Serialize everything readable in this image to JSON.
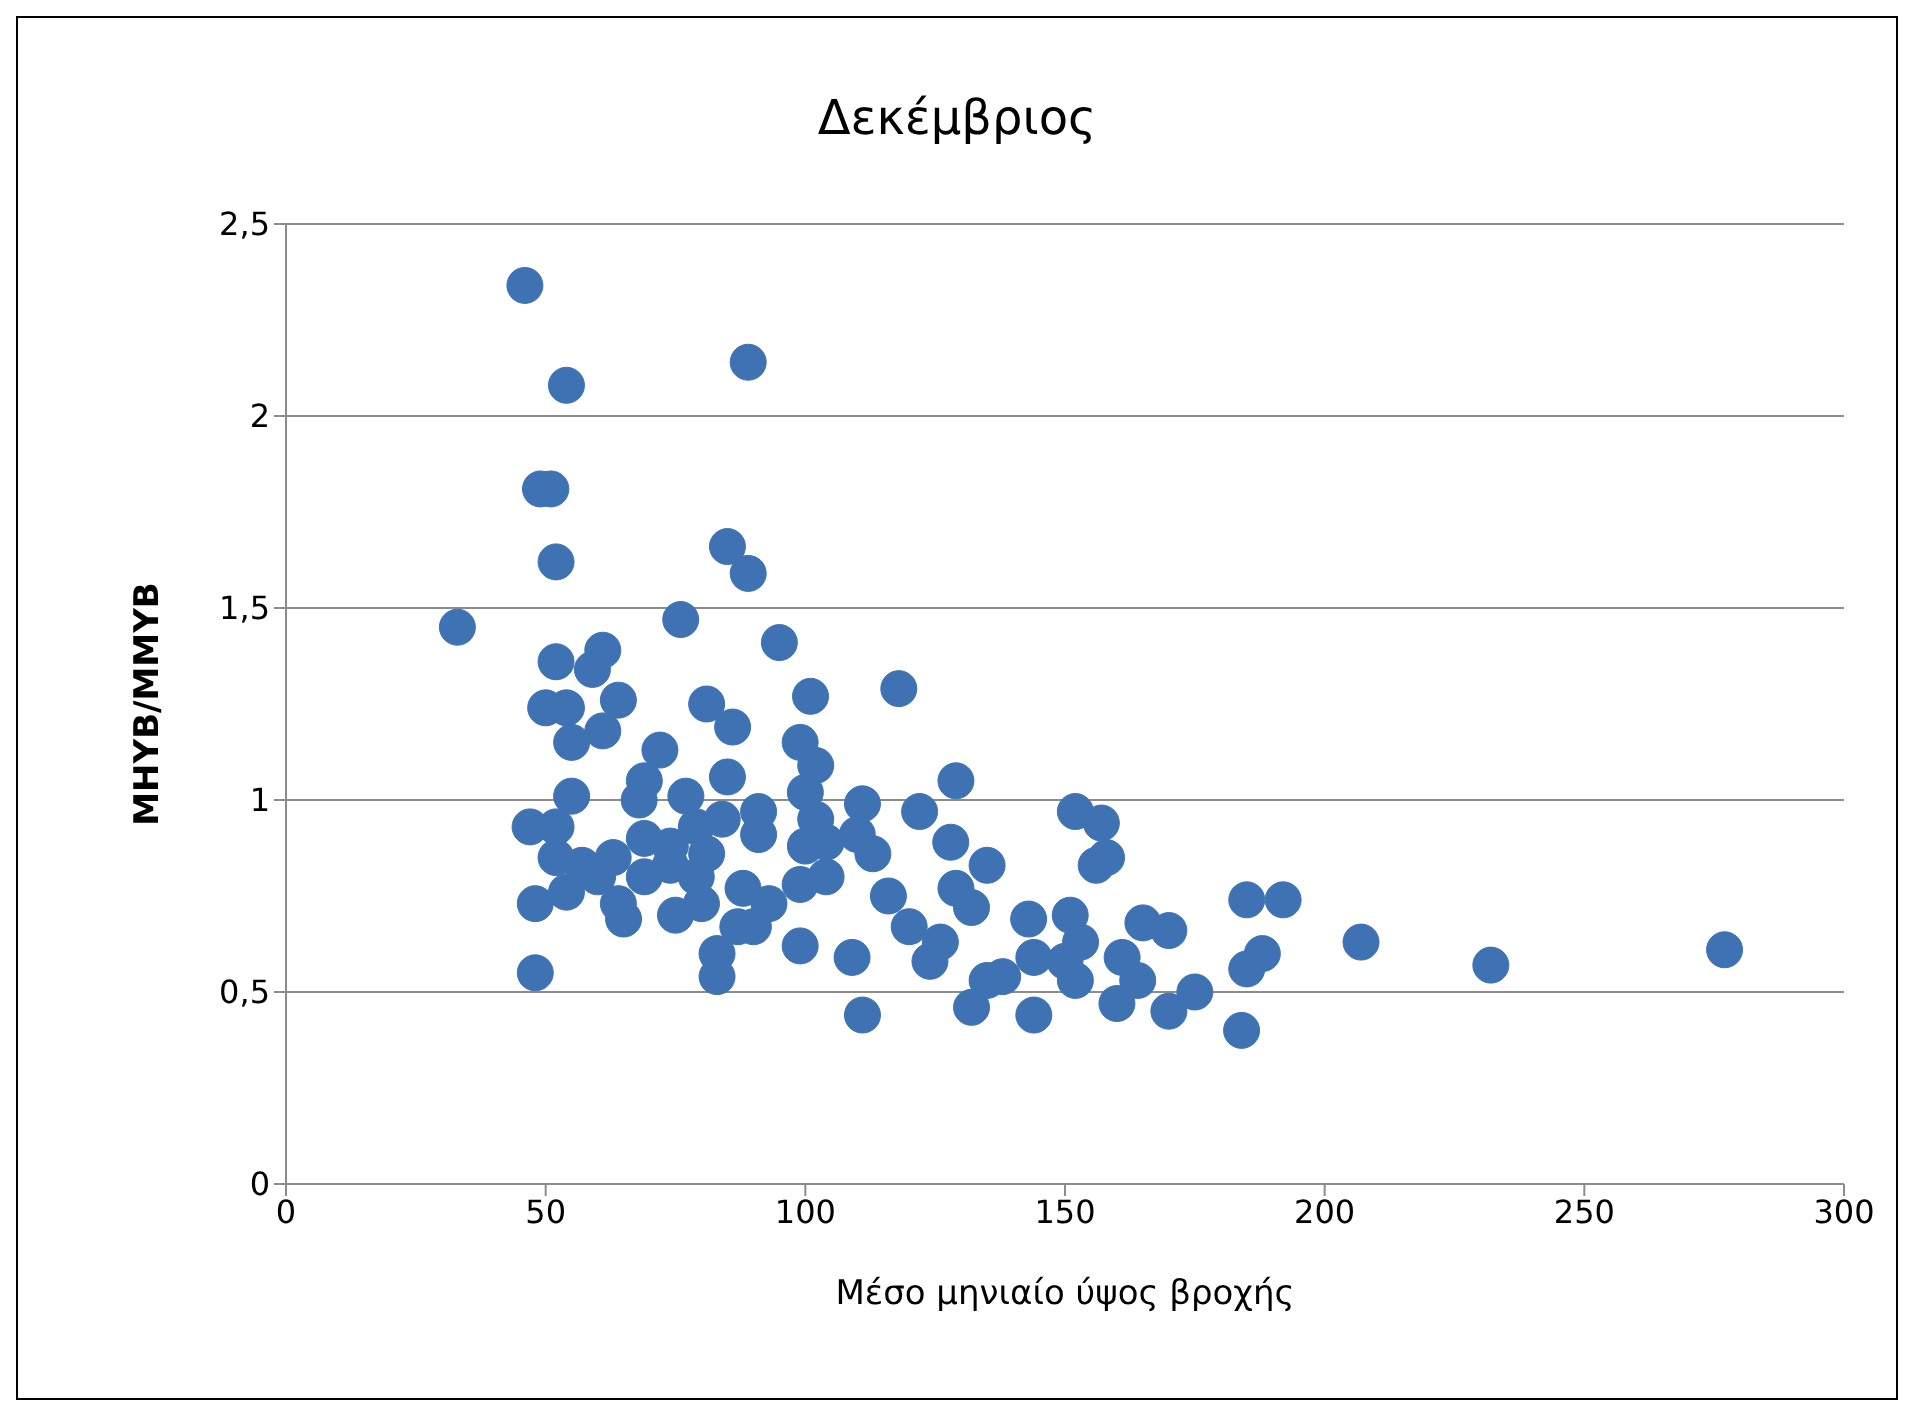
{
  "chart_data": {
    "type": "scatter",
    "title": "Δεκέμβριος",
    "xlabel": "Μέσο μηνιαίο ύψος βροχής",
    "ylabel": "ΜΗΥΒ/ΜΜΥΒ",
    "x": [
      46,
      54,
      89,
      49,
      51,
      52,
      85,
      89,
      33,
      76,
      95,
      52,
      61,
      59,
      50,
      54,
      64,
      55,
      61,
      81,
      86,
      101,
      99,
      102,
      72,
      85,
      100,
      55,
      69,
      68,
      77,
      47,
      52,
      69,
      84,
      91,
      91,
      102,
      104,
      100,
      52,
      57,
      63,
      60,
      69,
      74,
      74,
      81,
      79,
      79,
      99,
      104,
      48,
      54,
      64,
      65,
      75,
      80,
      88,
      93,
      90,
      87,
      99,
      83,
      83,
      48,
      118,
      129,
      111,
      122,
      152,
      157,
      158,
      156,
      128,
      113,
      110,
      135,
      129,
      132,
      116,
      120,
      126,
      124,
      143,
      151,
      153,
      144,
      150,
      152,
      165,
      170,
      161,
      164,
      160,
      170,
      175,
      185,
      192,
      188,
      185,
      184,
      138,
      135,
      132,
      144,
      111,
      109,
      207,
      232,
      277
    ],
    "series": [
      {
        "color": "#3f72b3",
        "values": [
          2.34,
          2.08,
          2.14,
          1.81,
          1.81,
          1.62,
          1.66,
          1.59,
          1.45,
          1.47,
          1.41,
          1.36,
          1.39,
          1.34,
          1.24,
          1.24,
          1.26,
          1.15,
          1.18,
          1.25,
          1.19,
          1.27,
          1.15,
          1.09,
          1.13,
          1.06,
          1.02,
          1.01,
          1.05,
          1.0,
          1.01,
          0.93,
          0.93,
          0.9,
          0.95,
          0.97,
          0.91,
          0.95,
          0.89,
          0.88,
          0.85,
          0.83,
          0.85,
          0.8,
          0.8,
          0.83,
          0.88,
          0.86,
          0.93,
          0.8,
          0.78,
          0.8,
          0.73,
          0.76,
          0.73,
          0.69,
          0.7,
          0.73,
          0.77,
          0.73,
          0.67,
          0.67,
          0.62,
          0.6,
          0.54,
          0.55,
          1.29,
          1.05,
          0.99,
          0.97,
          0.97,
          0.94,
          0.85,
          0.83,
          0.89,
          0.86,
          0.91,
          0.83,
          0.77,
          0.72,
          0.75,
          0.67,
          0.63,
          0.58,
          0.69,
          0.7,
          0.63,
          0.59,
          0.58,
          0.53,
          0.68,
          0.66,
          0.59,
          0.53,
          0.47,
          0.45,
          0.5,
          0.74,
          0.74,
          0.6,
          0.56,
          0.4,
          0.54,
          0.53,
          0.46,
          0.44,
          0.44,
          0.59,
          0.63,
          0.57,
          0.61
        ]
      }
    ],
    "xlim": [
      0,
      300
    ],
    "xticks": [
      0,
      50,
      100,
      150,
      200,
      250,
      300
    ],
    "ylim": [
      0,
      2.5
    ],
    "yticks": [
      0,
      {
        "value": 0.5,
        "label": "0,5"
      },
      1,
      {
        "value": 1.5,
        "label": "1,5"
      },
      2,
      {
        "value": 2.5,
        "label": "2,5"
      }
    ],
    "grid": "y",
    "legend": false,
    "marker": "circle"
  }
}
